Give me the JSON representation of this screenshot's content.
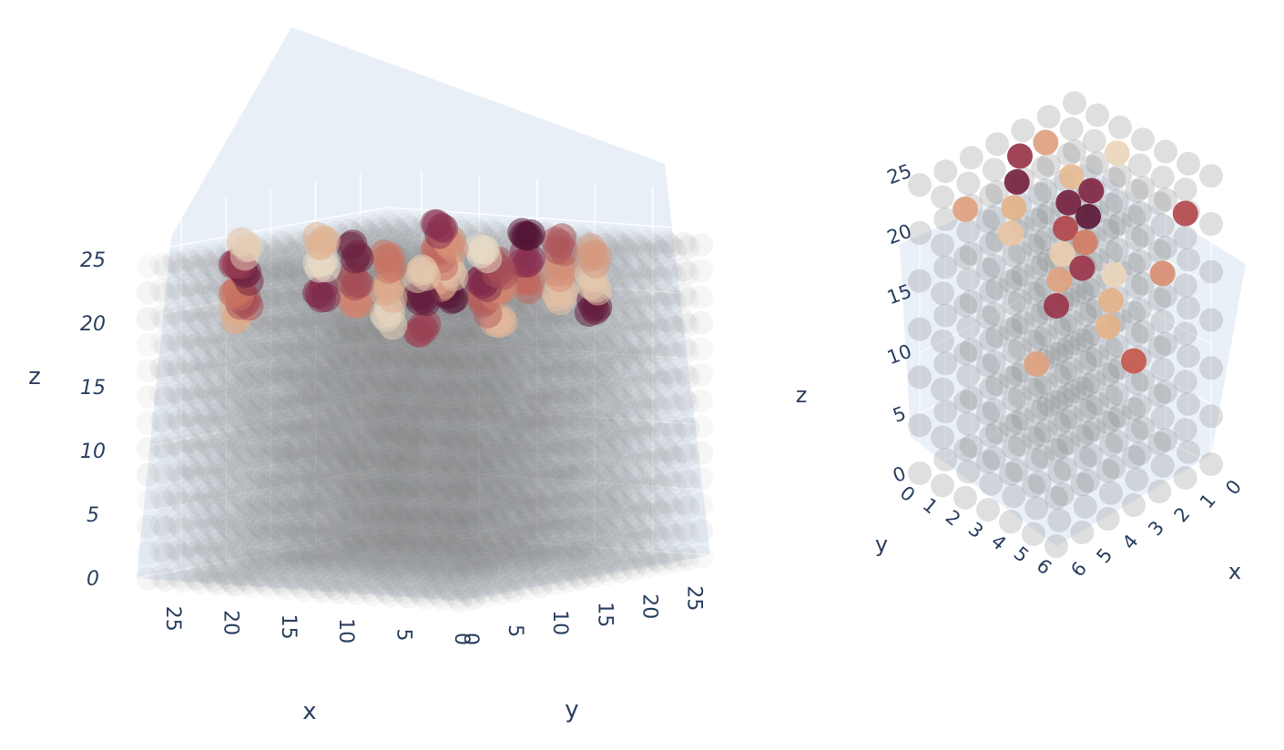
{
  "chart_data": [
    {
      "type": "scatter3d",
      "title": "",
      "axes": {
        "x": {
          "title": "x",
          "ticks": [
            "0",
            "5",
            "10",
            "15",
            "20",
            "25"
          ],
          "range": [
            0,
            28
          ]
        },
        "y": {
          "title": "y",
          "ticks": [
            "0",
            "5",
            "10",
            "15",
            "20",
            "25"
          ],
          "range": [
            0,
            28
          ]
        },
        "z": {
          "title": "z",
          "ticks": [
            "0",
            "5",
            "10",
            "15",
            "20",
            "25"
          ],
          "range": [
            0,
            28
          ]
        }
      },
      "grid": true,
      "background": "#e5ecf6",
      "base_points": {
        "grid_x": [
          0,
          28
        ],
        "grid_y": [
          0,
          28
        ],
        "grid_z": [
          0,
          25
        ],
        "color": "#7f7f7f",
        "opacity": 0.12
      },
      "highlight_points": {
        "z_layers": [
          20,
          22,
          24
        ],
        "colorscale": [
          "#e8dcc8",
          "#e0b090",
          "#c87060",
          "#8a3050",
          "#4a1030"
        ],
        "opacity": 0.75
      }
    },
    {
      "type": "scatter3d",
      "title": "",
      "axes": {
        "x": {
          "title": "x",
          "ticks": [
            "0",
            "1",
            "2",
            "3",
            "4",
            "5",
            "6"
          ],
          "range": [
            0,
            6
          ]
        },
        "y": {
          "title": "y",
          "ticks": [
            "0",
            "1",
            "2",
            "3",
            "4",
            "5",
            "6"
          ],
          "range": [
            0,
            6
          ]
        },
        "z": {
          "title": "z",
          "ticks": [
            "0",
            "5",
            "10",
            "15",
            "20",
            "25"
          ],
          "range": [
            0,
            25
          ]
        }
      },
      "grid": true,
      "background": "#e5ecf6",
      "base_points": {
        "color": "#7f7f7f",
        "opacity": 0.25
      },
      "highlight_points": {
        "colorscale": [
          "#f0e0c8",
          "#e6b48a",
          "#c9584c",
          "#8f2a48",
          "#4e1230"
        ],
        "opacity": 0.9
      }
    }
  ]
}
